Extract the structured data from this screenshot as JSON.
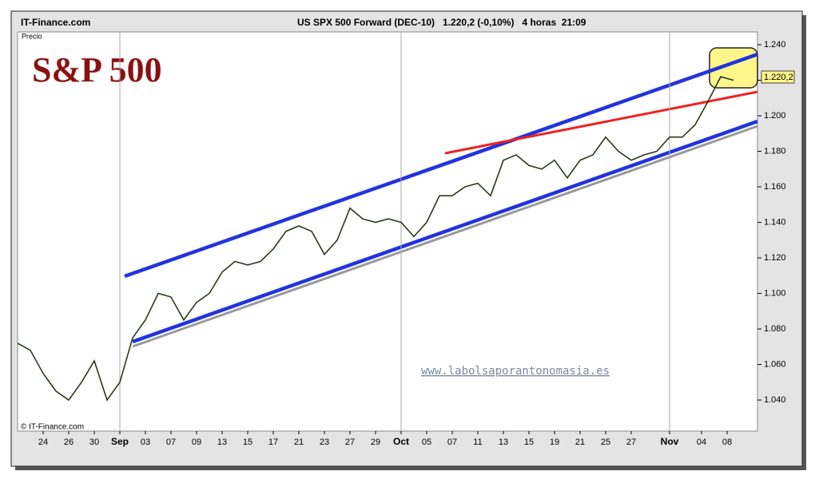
{
  "chart_data": {
    "type": "line",
    "site": "IT-Finance.com",
    "title": "US SPX 500 Forward (DEC-10)   1.220,2 (-0,10%)   4 horas  21:09",
    "y_label": "Precio",
    "headline": "S&P 500",
    "watermark": "www.labolsaporantonomasia.es",
    "copyright": "© IT-Finance.com",
    "last_price_label": "1.220,2",
    "color": "#2a3a1a",
    "x": [
      0,
      1,
      2,
      3,
      4,
      5,
      6,
      7,
      8,
      9,
      10,
      11,
      12,
      13,
      14,
      15,
      16,
      17,
      18,
      19,
      20,
      21,
      22,
      23,
      24,
      25,
      26,
      27,
      28,
      29,
      30,
      31,
      32,
      33,
      34,
      35,
      36,
      37,
      38,
      39,
      40,
      41,
      42,
      43,
      44,
      45,
      46,
      47,
      48,
      49,
      50,
      51,
      52,
      53,
      54,
      55,
      56
    ],
    "values": [
      1.072,
      1.068,
      1.055,
      1.045,
      1.04,
      1.05,
      1.062,
      1.04,
      1.05,
      1.075,
      1.085,
      1.1,
      1.098,
      1.085,
      1.095,
      1.1,
      1.112,
      1.118,
      1.116,
      1.118,
      1.125,
      1.135,
      1.138,
      1.135,
      1.122,
      1.13,
      1.148,
      1.142,
      1.14,
      1.142,
      1.14,
      1.132,
      1.14,
      1.155,
      1.155,
      1.16,
      1.162,
      1.155,
      1.175,
      1.178,
      1.172,
      1.17,
      1.175,
      1.165,
      1.175,
      1.178,
      1.188,
      1.18,
      1.175,
      1.178,
      1.18,
      1.188,
      1.188,
      1.195,
      1.208,
      1.222,
      1.22
    ],
    "xlim": [
      0,
      57.875
    ],
    "xticks": [
      {
        "value": 2,
        "label": "24"
      },
      {
        "value": 4,
        "label": "26"
      },
      {
        "value": 6,
        "label": "30"
      },
      {
        "value": 8,
        "label": "Sep"
      },
      {
        "value": 10,
        "label": "03"
      },
      {
        "value": 12,
        "label": "07"
      },
      {
        "value": 14,
        "label": "09"
      },
      {
        "value": 16,
        "label": "13"
      },
      {
        "value": 18,
        "label": "15"
      },
      {
        "value": 20,
        "label": "17"
      },
      {
        "value": 22,
        "label": "21"
      },
      {
        "value": 24,
        "label": "23"
      },
      {
        "value": 26,
        "label": "27"
      },
      {
        "value": 28,
        "label": "29"
      },
      {
        "value": 30,
        "label": "Oct"
      },
      {
        "value": 32,
        "label": "05"
      },
      {
        "value": 34,
        "label": "07"
      },
      {
        "value": 36,
        "label": "11"
      },
      {
        "value": 38,
        "label": "13"
      },
      {
        "value": 40,
        "label": "15"
      },
      {
        "value": 42,
        "label": "19"
      },
      {
        "value": 44,
        "label": "21"
      },
      {
        "value": 46,
        "label": "25"
      },
      {
        "value": 48,
        "label": "27"
      },
      {
        "value": 51,
        "label": "Nov"
      },
      {
        "value": 53.5,
        "label": "04"
      },
      {
        "value": 55.5,
        "label": "08"
      }
    ],
    "month_ticks": [
      3,
      14,
      24
    ],
    "ylim": [
      1.0225,
      1.2472
    ],
    "yticks": [
      {
        "value": 1.04,
        "label": "1.040"
      },
      {
        "value": 1.06,
        "label": "1.060"
      },
      {
        "value": 1.08,
        "label": "1.080"
      },
      {
        "value": 1.1,
        "label": "1.100"
      },
      {
        "value": 1.12,
        "label": "1.120"
      },
      {
        "value": 1.14,
        "label": "1.140"
      },
      {
        "value": 1.16,
        "label": "1.160"
      },
      {
        "value": 1.18,
        "label": "1.180"
      },
      {
        "value": 1.2,
        "label": "1.200"
      },
      {
        "value": 1.22,
        "label": "1.220"
      },
      {
        "value": 1.24,
        "label": "1.240"
      }
    ]
  }
}
